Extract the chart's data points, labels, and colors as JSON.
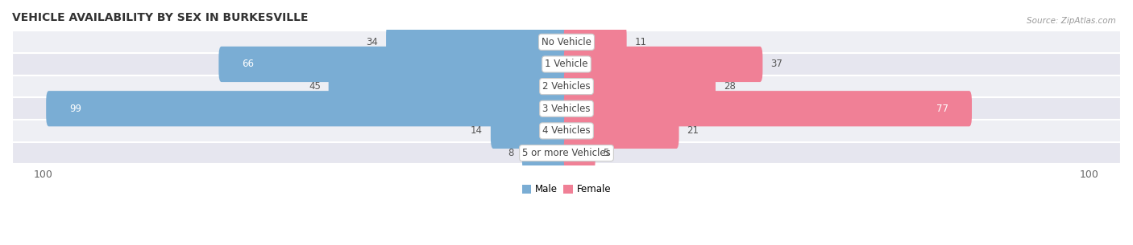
{
  "title": "VEHICLE AVAILABILITY BY SEX IN BURKESVILLE",
  "source": "Source: ZipAtlas.com",
  "categories": [
    "No Vehicle",
    "1 Vehicle",
    "2 Vehicles",
    "3 Vehicles",
    "4 Vehicles",
    "5 or more Vehicles"
  ],
  "male_values": [
    34,
    66,
    45,
    99,
    14,
    8
  ],
  "female_values": [
    11,
    37,
    28,
    77,
    21,
    5
  ],
  "male_color": "#7aadd4",
  "female_color": "#f08096",
  "row_bg_colors": [
    "#ececf2",
    "#e4e4ec",
    "#ececf2",
    "#e4e4ec",
    "#ececf2",
    "#e4e4ec"
  ],
  "max_val": 100,
  "legend_male": "Male",
  "legend_female": "Female",
  "title_fontsize": 10,
  "label_fontsize": 8.5,
  "category_fontsize": 8.5,
  "axis_fontsize": 9
}
